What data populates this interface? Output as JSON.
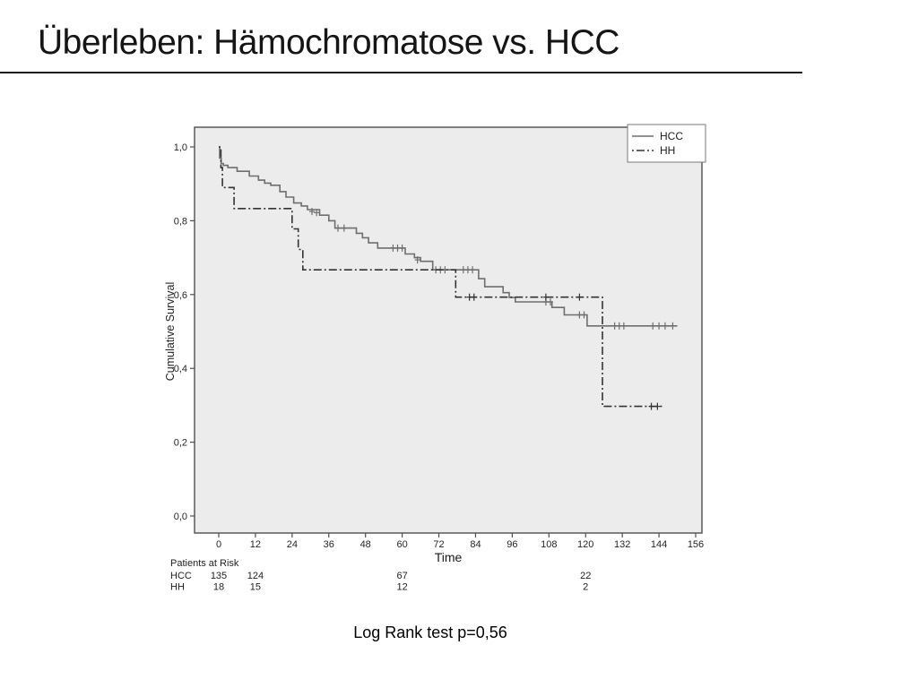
{
  "slide": {
    "title": "Überleben: Hämochromatose vs. HCC",
    "footer": "Log Rank test p=0,56"
  },
  "chart_data": {
    "type": "line",
    "subtype": "kaplan-meier-step",
    "title": "",
    "xlabel": "Time",
    "ylabel": "Cumulative Survival",
    "xlim": [
      0,
      156
    ],
    "ylim": [
      0.0,
      1.0
    ],
    "grid": false,
    "plot_bg": "#ececec",
    "frame_color": "#4f4f4f",
    "x_ticks": [
      0,
      12,
      24,
      36,
      48,
      60,
      72,
      84,
      96,
      108,
      120,
      132,
      144,
      156
    ],
    "y_ticks": [
      1.0,
      0.8,
      0.6,
      0.4,
      0.2,
      0.0
    ],
    "y_tick_labels": [
      "1,0",
      "0,8",
      "0,6",
      "0,4",
      "0,2",
      "0,0"
    ],
    "legend": {
      "position": "top-right",
      "entries": [
        {
          "label": "HCC",
          "style": "solid"
        },
        {
          "label": "HH",
          "style": "dash-dot"
        }
      ]
    },
    "series": [
      {
        "name": "HCC",
        "style": "solid",
        "color": "#6e6e6e",
        "steps": [
          [
            0,
            1.0
          ],
          [
            0.3,
            0.97
          ],
          [
            0.8,
            0.955
          ],
          [
            1.5,
            0.95
          ],
          [
            3,
            0.944
          ],
          [
            6,
            0.934
          ],
          [
            10,
            0.921
          ],
          [
            13,
            0.91
          ],
          [
            15,
            0.902
          ],
          [
            17,
            0.896
          ],
          [
            20,
            0.879
          ],
          [
            22,
            0.864
          ],
          [
            24.5,
            0.848
          ],
          [
            27,
            0.84
          ],
          [
            29,
            0.83
          ],
          [
            33,
            0.815
          ],
          [
            36,
            0.8
          ],
          [
            38,
            0.78
          ],
          [
            45,
            0.766
          ],
          [
            47,
            0.754
          ],
          [
            49,
            0.74
          ],
          [
            52,
            0.726
          ],
          [
            61,
            0.71
          ],
          [
            64,
            0.7
          ],
          [
            66,
            0.69
          ],
          [
            70,
            0.667
          ],
          [
            85,
            0.643
          ],
          [
            87,
            0.621
          ],
          [
            93,
            0.605
          ],
          [
            95,
            0.592
          ],
          [
            97,
            0.58
          ],
          [
            109,
            0.565
          ],
          [
            113,
            0.545
          ],
          [
            120.5,
            0.515
          ],
          [
            150,
            0.515
          ]
        ],
        "censors": [
          [
            30.5,
            0.825
          ],
          [
            32,
            0.822
          ],
          [
            39,
            0.78
          ],
          [
            41,
            0.78
          ],
          [
            57,
            0.726
          ],
          [
            58.5,
            0.726
          ],
          [
            60,
            0.726
          ],
          [
            65,
            0.694
          ],
          [
            71,
            0.667
          ],
          [
            72.5,
            0.667
          ],
          [
            74,
            0.667
          ],
          [
            80,
            0.667
          ],
          [
            81.5,
            0.667
          ],
          [
            83,
            0.667
          ],
          [
            107,
            0.58
          ],
          [
            108.5,
            0.58
          ],
          [
            118,
            0.545
          ],
          [
            119.5,
            0.545
          ],
          [
            129.5,
            0.515
          ],
          [
            131,
            0.515
          ],
          [
            132.5,
            0.515
          ],
          [
            142,
            0.515
          ],
          [
            144,
            0.515
          ],
          [
            146,
            0.515
          ],
          [
            148.5,
            0.515
          ]
        ]
      },
      {
        "name": "HH",
        "style": "dash-dot",
        "color": "#333333",
        "steps": [
          [
            0,
            1.0
          ],
          [
            0.7,
            0.944
          ],
          [
            1.2,
            0.89
          ],
          [
            5,
            0.833
          ],
          [
            24,
            0.778
          ],
          [
            26,
            0.722
          ],
          [
            27.5,
            0.667
          ],
          [
            77.5,
            0.593
          ],
          [
            125.5,
            0.297
          ],
          [
            145.5,
            0.297
          ]
        ],
        "censors": [
          [
            82,
            0.593
          ],
          [
            83.5,
            0.593
          ],
          [
            107,
            0.593
          ],
          [
            118,
            0.593
          ],
          [
            141.5,
            0.297
          ],
          [
            143.5,
            0.297
          ]
        ]
      }
    ],
    "at_risk": {
      "title": "Patients at Risk",
      "time_points": [
        0,
        12,
        60,
        120
      ],
      "rows": [
        {
          "label": "HCC",
          "values": [
            "135",
            "124",
            "67",
            "22"
          ]
        },
        {
          "label": "HH",
          "values": [
            "18",
            "15",
            "12",
            "2"
          ]
        }
      ]
    }
  }
}
